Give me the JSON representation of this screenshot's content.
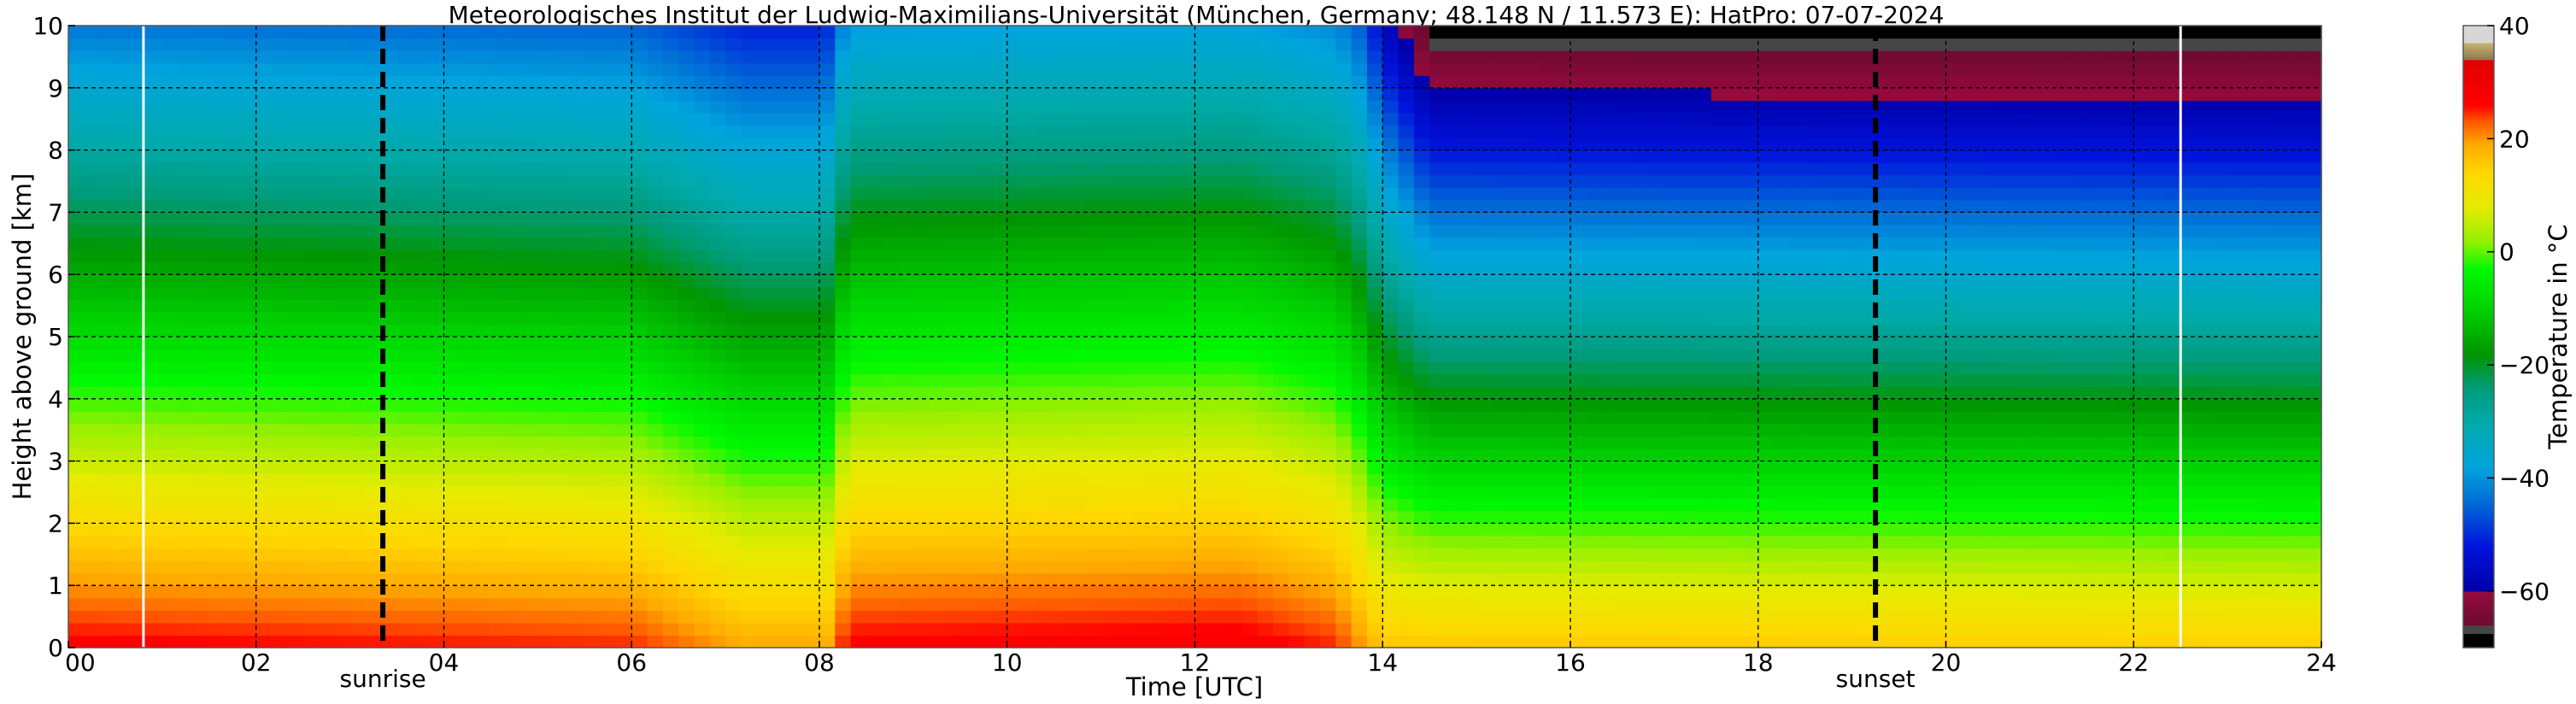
{
  "chart_data": {
    "type": "heatmap",
    "title": "Meteorologisches Institut der Ludwig-Maximilians-Universität (München, Germany; 48.148 N / 11.573 E):    HatPro: 07-07-2024",
    "xlabel": "Time [UTC]",
    "ylabel": "Height above ground [km]",
    "xlim": [
      0,
      24
    ],
    "ylim": [
      0,
      10
    ],
    "xticks": [
      0,
      2,
      4,
      6,
      8,
      10,
      12,
      14,
      16,
      18,
      20,
      22,
      24
    ],
    "xtick_labels": [
      "00",
      "02",
      "04",
      "06",
      "08",
      "10",
      "12",
      "14",
      "16",
      "18",
      "20",
      "22",
      "24"
    ],
    "yticks": [
      0,
      1,
      2,
      3,
      4,
      5,
      6,
      7,
      8,
      9,
      10
    ],
    "ytick_labels": [
      "0",
      "1",
      "2",
      "3",
      "4",
      "5",
      "6",
      "7",
      "8",
      "9",
      "10"
    ],
    "grid": true,
    "colorbar": {
      "label": "Temperature in °C",
      "range": [
        -70,
        40
      ],
      "ticks": [
        40,
        20,
        0,
        -20,
        -40,
        -60
      ],
      "tick_labels": [
        "40",
        "20",
        "0",
        "−20",
        "−40",
        "−60"
      ]
    },
    "annotations": [
      {
        "text": "sunrise",
        "x": 3.35
      },
      {
        "text": "sunset",
        "x": 19.25
      }
    ],
    "data_gaps_utc": [
      0.8,
      22.5
    ],
    "surface_temperature_c": [
      [
        0,
        27
      ],
      [
        6,
        25
      ],
      [
        7.2,
        19
      ],
      [
        8.1,
        19
      ],
      [
        8.3,
        27
      ],
      [
        12.5,
        28
      ],
      [
        13.5,
        25
      ],
      [
        14,
        16
      ],
      [
        24,
        15
      ]
    ],
    "lapse_rate_c_per_km": [
      [
        0,
        7
      ],
      [
        8,
        7
      ],
      [
        8.3,
        6.6
      ],
      [
        13.8,
        6.6
      ],
      [
        14.5,
        8.5
      ],
      [
        24,
        8.5
      ]
    ]
  }
}
